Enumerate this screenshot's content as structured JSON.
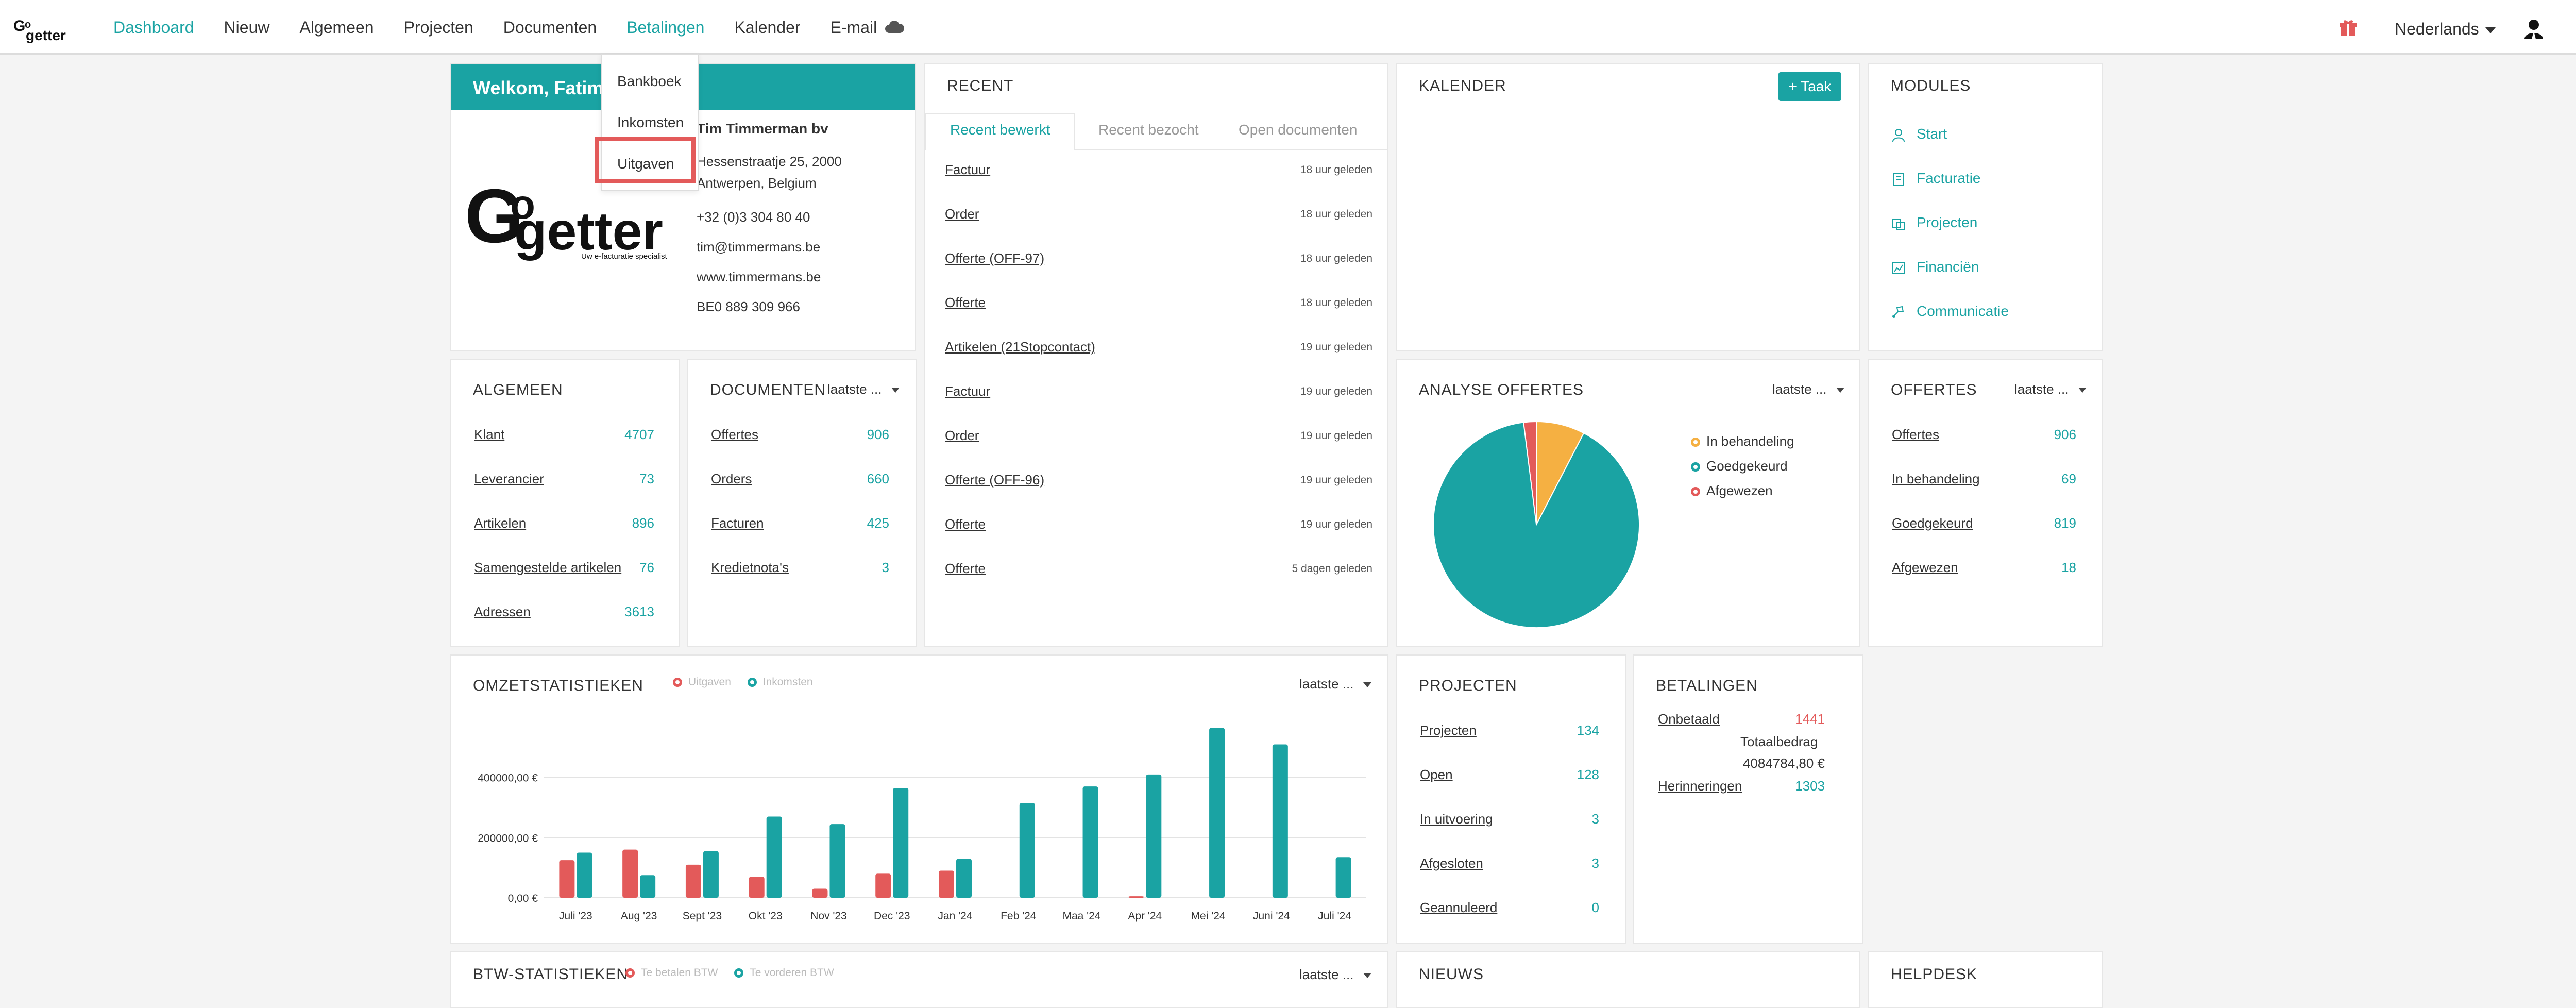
{
  "colors": {
    "accent": "#1aa3a3",
    "red": "#e35a5a",
    "orange": "#f5b042"
  },
  "nav": {
    "items": [
      "Dashboard",
      "Nieuw",
      "Algemeen",
      "Projecten",
      "Documenten",
      "Betalingen",
      "Kalender",
      "E-mail"
    ],
    "language": "Nederlands"
  },
  "dropdown": {
    "items": [
      "Bankboek",
      "Inkomsten",
      "Uitgaven"
    ]
  },
  "welcome": {
    "title": "Welkom, Fatima",
    "company": "Tim Timmerman bv",
    "address1": "Hessenstraatje 25, 2000",
    "address2": "Antwerpen, Belgium",
    "phone": "+32 (0)3 304 80 40",
    "email": "tim@timmermans.be",
    "website": "www.timmermans.be",
    "vat": "BE0 889 309 966",
    "logo_text": "GoGetter",
    "logo_tagline": "Uw e-facturatie specialist"
  },
  "recent": {
    "title": "RECENT",
    "tabs": [
      "Recent bewerkt",
      "Recent bezocht",
      "Open documenten"
    ],
    "rows": [
      {
        "label": "Factuur",
        "time": "18 uur geleden"
      },
      {
        "label": "Order",
        "time": "18 uur geleden"
      },
      {
        "label": "Offerte (OFF-97)",
        "time": "18 uur geleden"
      },
      {
        "label": "Offerte",
        "time": "18 uur geleden"
      },
      {
        "label": "Artikelen (21Stopcontact)",
        "time": "19 uur geleden"
      },
      {
        "label": "Factuur",
        "time": "19 uur geleden"
      },
      {
        "label": "Order",
        "time": "19 uur geleden"
      },
      {
        "label": "Offerte (OFF-96)",
        "time": "19 uur geleden"
      },
      {
        "label": "Offerte",
        "time": "19 uur geleden"
      },
      {
        "label": "Offerte",
        "time": "5 dagen geleden"
      }
    ]
  },
  "kalender": {
    "title": "KALENDER",
    "button": "+ Taak"
  },
  "modules": {
    "title": "MODULES",
    "items": [
      {
        "label": "Start",
        "icon": "user-icon"
      },
      {
        "label": "Facturatie",
        "icon": "invoice-icon"
      },
      {
        "label": "Projecten",
        "icon": "projects-icon"
      },
      {
        "label": "Financiën",
        "icon": "finance-icon"
      },
      {
        "label": "Communicatie",
        "icon": "communication-icon"
      }
    ]
  },
  "algemeen": {
    "title": "ALGEMEEN",
    "rows": [
      {
        "label": "Klant",
        "value": "4707"
      },
      {
        "label": "Leverancier",
        "value": "73"
      },
      {
        "label": "Artikelen",
        "value": "896"
      },
      {
        "label": "Samengestelde artikelen",
        "value": "76"
      },
      {
        "label": "Adressen",
        "value": "3613"
      }
    ]
  },
  "documenten": {
    "title": "DOCUMENTEN",
    "filter": "laatste ...",
    "rows": [
      {
        "label": "Offertes",
        "value": "906"
      },
      {
        "label": "Orders",
        "value": "660"
      },
      {
        "label": "Facturen",
        "value": "425"
      },
      {
        "label": "Kredietnota's",
        "value": "3"
      }
    ]
  },
  "analyse": {
    "title": "ANALYSE OFFERTES",
    "filter": "laatste ...",
    "legend": [
      "In behandeling",
      "Goedgekeurd",
      "Afgewezen"
    ]
  },
  "offertes": {
    "title": "OFFERTES",
    "filter": "laatste ...",
    "rows": [
      {
        "label": "Offertes",
        "value": "906"
      },
      {
        "label": "In behandeling",
        "value": "69"
      },
      {
        "label": "Goedgekeurd",
        "value": "819"
      },
      {
        "label": "Afgewezen",
        "value": "18"
      }
    ]
  },
  "omzet": {
    "title": "OMZETSTATISTIEKEN",
    "filter": "laatste ...",
    "legend": [
      "Uitgaven",
      "Inkomsten"
    ]
  },
  "projecten": {
    "title": "PROJECTEN",
    "rows": [
      {
        "label": "Projecten",
        "value": "134"
      },
      {
        "label": "Open",
        "value": "128"
      },
      {
        "label": "In uitvoering",
        "value": "3"
      },
      {
        "label": "Afgesloten",
        "value": "3"
      },
      {
        "label": "Geannuleerd",
        "value": "0"
      }
    ]
  },
  "betalingen": {
    "title": "BETALINGEN",
    "onbetaald_label": "Onbetaald",
    "onbetaald_value": "1441",
    "totaal_label": "Totaalbedrag",
    "totaal_value": "4084784,80 €",
    "herinneringen_label": "Herinneringen",
    "herinneringen_value": "1303"
  },
  "bottom": {
    "btw_title": "BTW-STATISTIEKEN",
    "btw_legend": [
      "Te betalen BTW",
      "Te vorderen BTW"
    ],
    "btw_filter": "laatste ...",
    "nieuws_title": "NIEUWS",
    "helpdesk_title": "HELPDESK"
  },
  "chart_data": [
    {
      "type": "pie",
      "categories": [
        "In behandeling",
        "Goedgekeurd",
        "Afgewezen"
      ],
      "values": [
        69,
        819,
        18
      ],
      "colors": [
        "#f5b042",
        "#1aa3a3",
        "#e35a5a"
      ]
    },
    {
      "type": "bar",
      "categories": [
        "Juli '23",
        "Aug '23",
        "Sept '23",
        "Okt '23",
        "Nov '23",
        "Dec '23",
        "Jan '24",
        "Feb '24",
        "Maa '24",
        "Apr '24",
        "Mei '24",
        "Juni '24",
        "Juli '24"
      ],
      "series": [
        {
          "name": "Uitgaven",
          "values": [
            125000,
            160000,
            110000,
            70000,
            30000,
            80000,
            90000,
            0,
            0,
            5000,
            0,
            0,
            0
          ]
        },
        {
          "name": "Inkomsten",
          "values": [
            150000,
            75000,
            155000,
            270000,
            245000,
            365000,
            130000,
            315000,
            370000,
            410000,
            565000,
            510000,
            135000
          ]
        }
      ],
      "yticks": [
        "0,00 €",
        "200000,00 €",
        "400000,00 €"
      ],
      "ylim": [
        0,
        600000
      ]
    }
  ]
}
